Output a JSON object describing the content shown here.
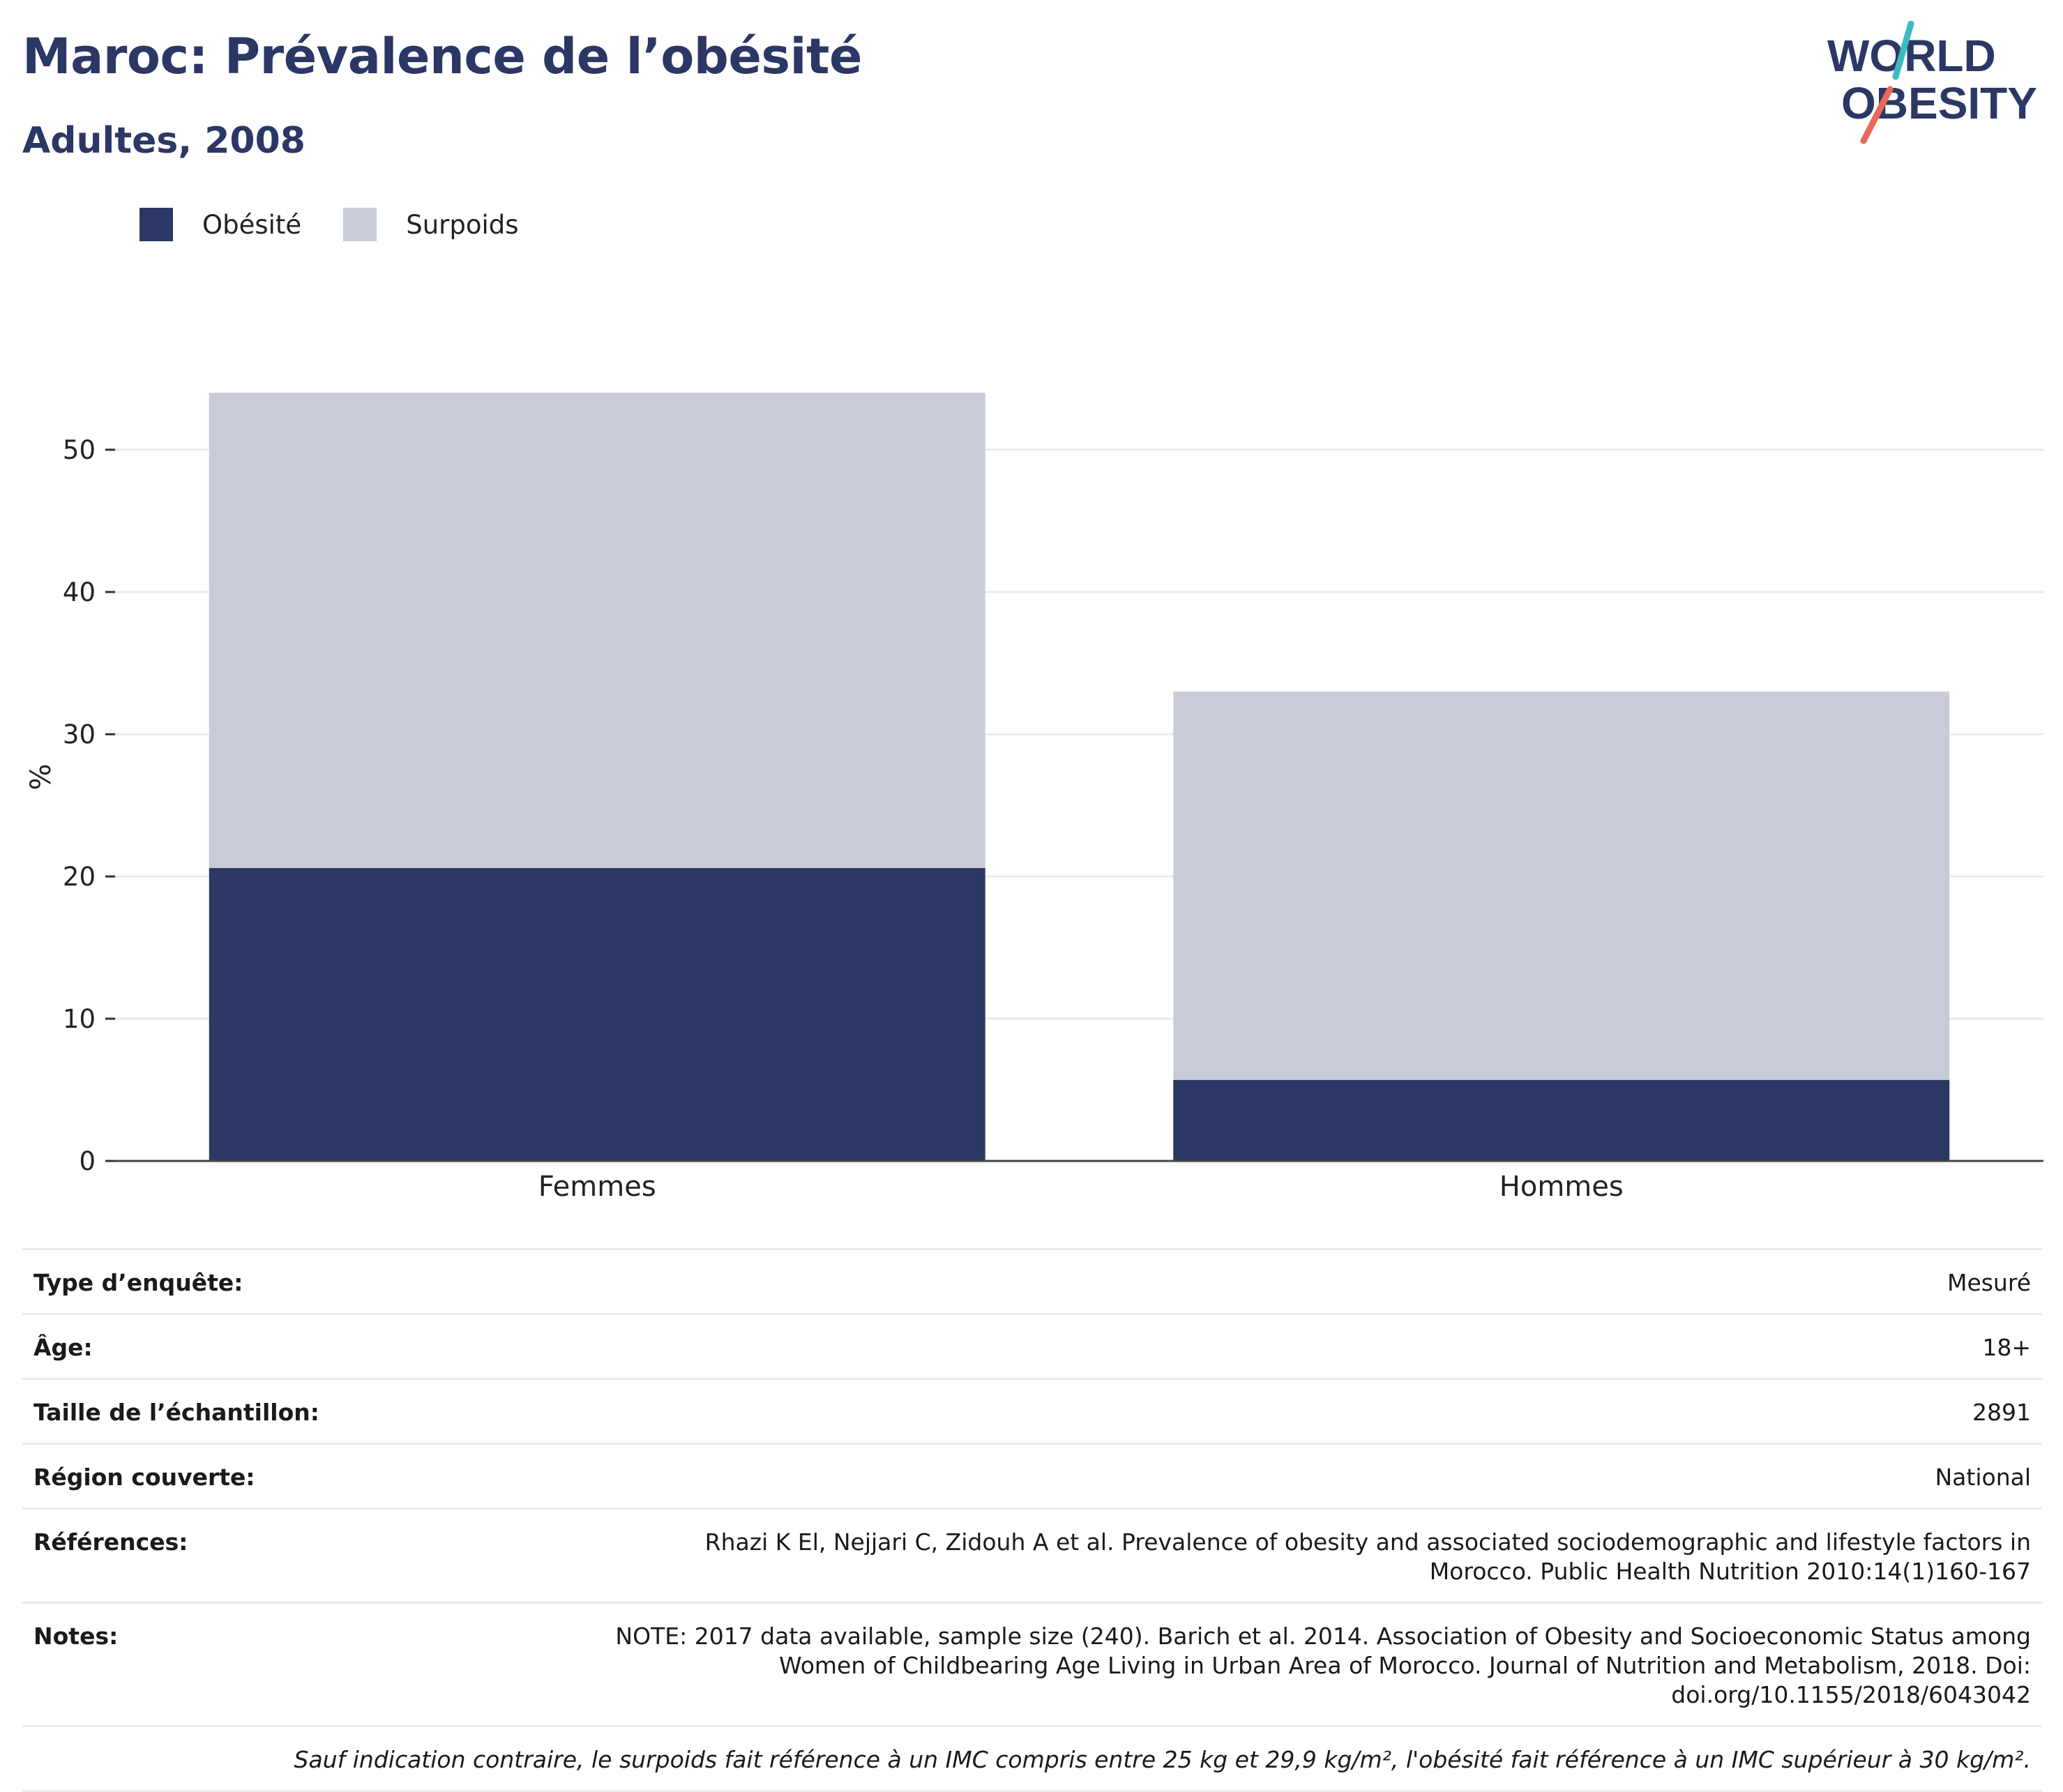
{
  "header": {
    "title": "Maroc: Prévalence de l’obésité",
    "subtitle": "Adultes, 2008"
  },
  "logo": {
    "line1": "WORLD",
    "line2": "OBESITY"
  },
  "colors": {
    "obesity": "#2b3764",
    "overweight": "#c9ccd8",
    "title": "#2b3764",
    "logo_teal": "#3bbcc1",
    "logo_coral": "#e8695a"
  },
  "legend": [
    {
      "label": "Obésité",
      "color": "#2b3764"
    },
    {
      "label": "Surpoids",
      "color": "#c9ccd8"
    }
  ],
  "chart_data": {
    "type": "bar",
    "stacked": true,
    "categories": [
      "Femmes",
      "Hommes"
    ],
    "series": [
      {
        "name": "Obésité",
        "values": [
          20.6,
          5.7
        ]
      },
      {
        "name": "Surpoids",
        "values": [
          33.4,
          27.3
        ]
      }
    ],
    "ylabel": "%",
    "yticks": [
      0,
      10,
      20,
      30,
      40,
      50
    ],
    "ylim": [
      0,
      54
    ],
    "grid": true,
    "legend_position": "top-left"
  },
  "info": [
    {
      "key": "Type d’enquête:",
      "value": "Mesuré"
    },
    {
      "key": "Âge:",
      "value": "18+"
    },
    {
      "key": "Taille de l’échantillon:",
      "value": "2891"
    },
    {
      "key": "Région couverte:",
      "value": "National"
    },
    {
      "key": "Références:",
      "value": "Rhazi K El, Nejjari C, Zidouh A et al. Prevalence of obesity and associated sociodemographic and lifestyle factors in Morocco. Public Health Nutrition 2010:14(1)160-167"
    },
    {
      "key": "Notes:",
      "value": "NOTE: 2017 data available, sample size (240). Barich et al. 2014. Association of Obesity and Socioeconomic Status among Women of Childbearing Age Living in Urban Area of Morocco. Journal of Nutrition and Metabolism, 2018. Doi: doi.org/10.1155/2018/6043042"
    }
  ],
  "footnote": "Sauf indication contraire, le surpoids fait référence à un IMC compris entre 25 kg et 29,9 kg/m², l'obésité fait référence à un IMC supérieur à 30 kg/m²."
}
